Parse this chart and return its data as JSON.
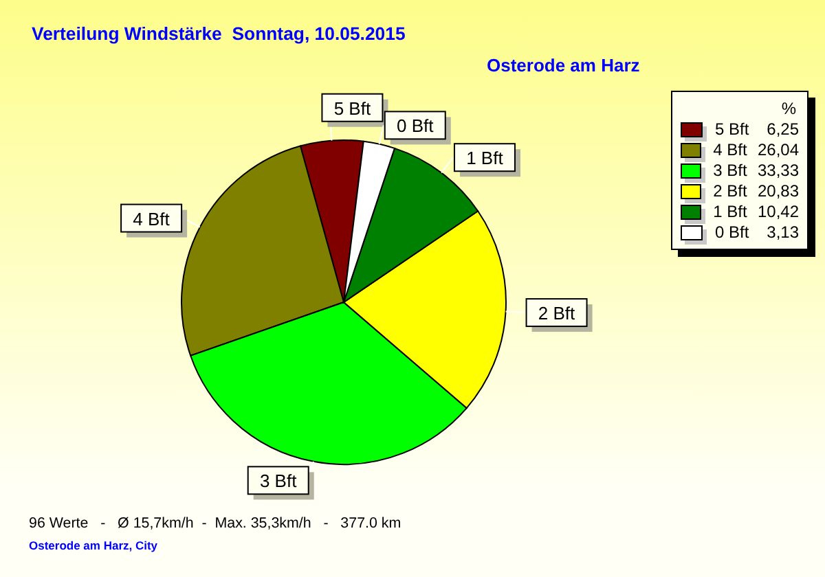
{
  "chart_data": {
    "type": "pie",
    "title": "Verteilung Windstärke  Sonntag, 10.05.2015",
    "subtitle": "Osterode am Harz",
    "legend_title": "%",
    "categories": [
      "5 Bft",
      "4 Bft",
      "3 Bft",
      "2 Bft",
      "1 Bft",
      "0 Bft"
    ],
    "values": [
      6.25,
      26.04,
      33.33,
      20.83,
      10.42,
      3.13
    ],
    "value_labels": [
      "6,25",
      "26,04",
      "33,33",
      "20,83",
      "10,42",
      "3,13"
    ],
    "colors": [
      "#800000",
      "#808000",
      "#00ff00",
      "#ffff00",
      "#008000",
      "#ffffff"
    ],
    "legend": "top right",
    "annotations": [
      "96 Werte   -   Ø 15,7km/h  -  Max. 35,3km/h   -   377.0 km",
      "Osterode am Harz, City"
    ]
  }
}
